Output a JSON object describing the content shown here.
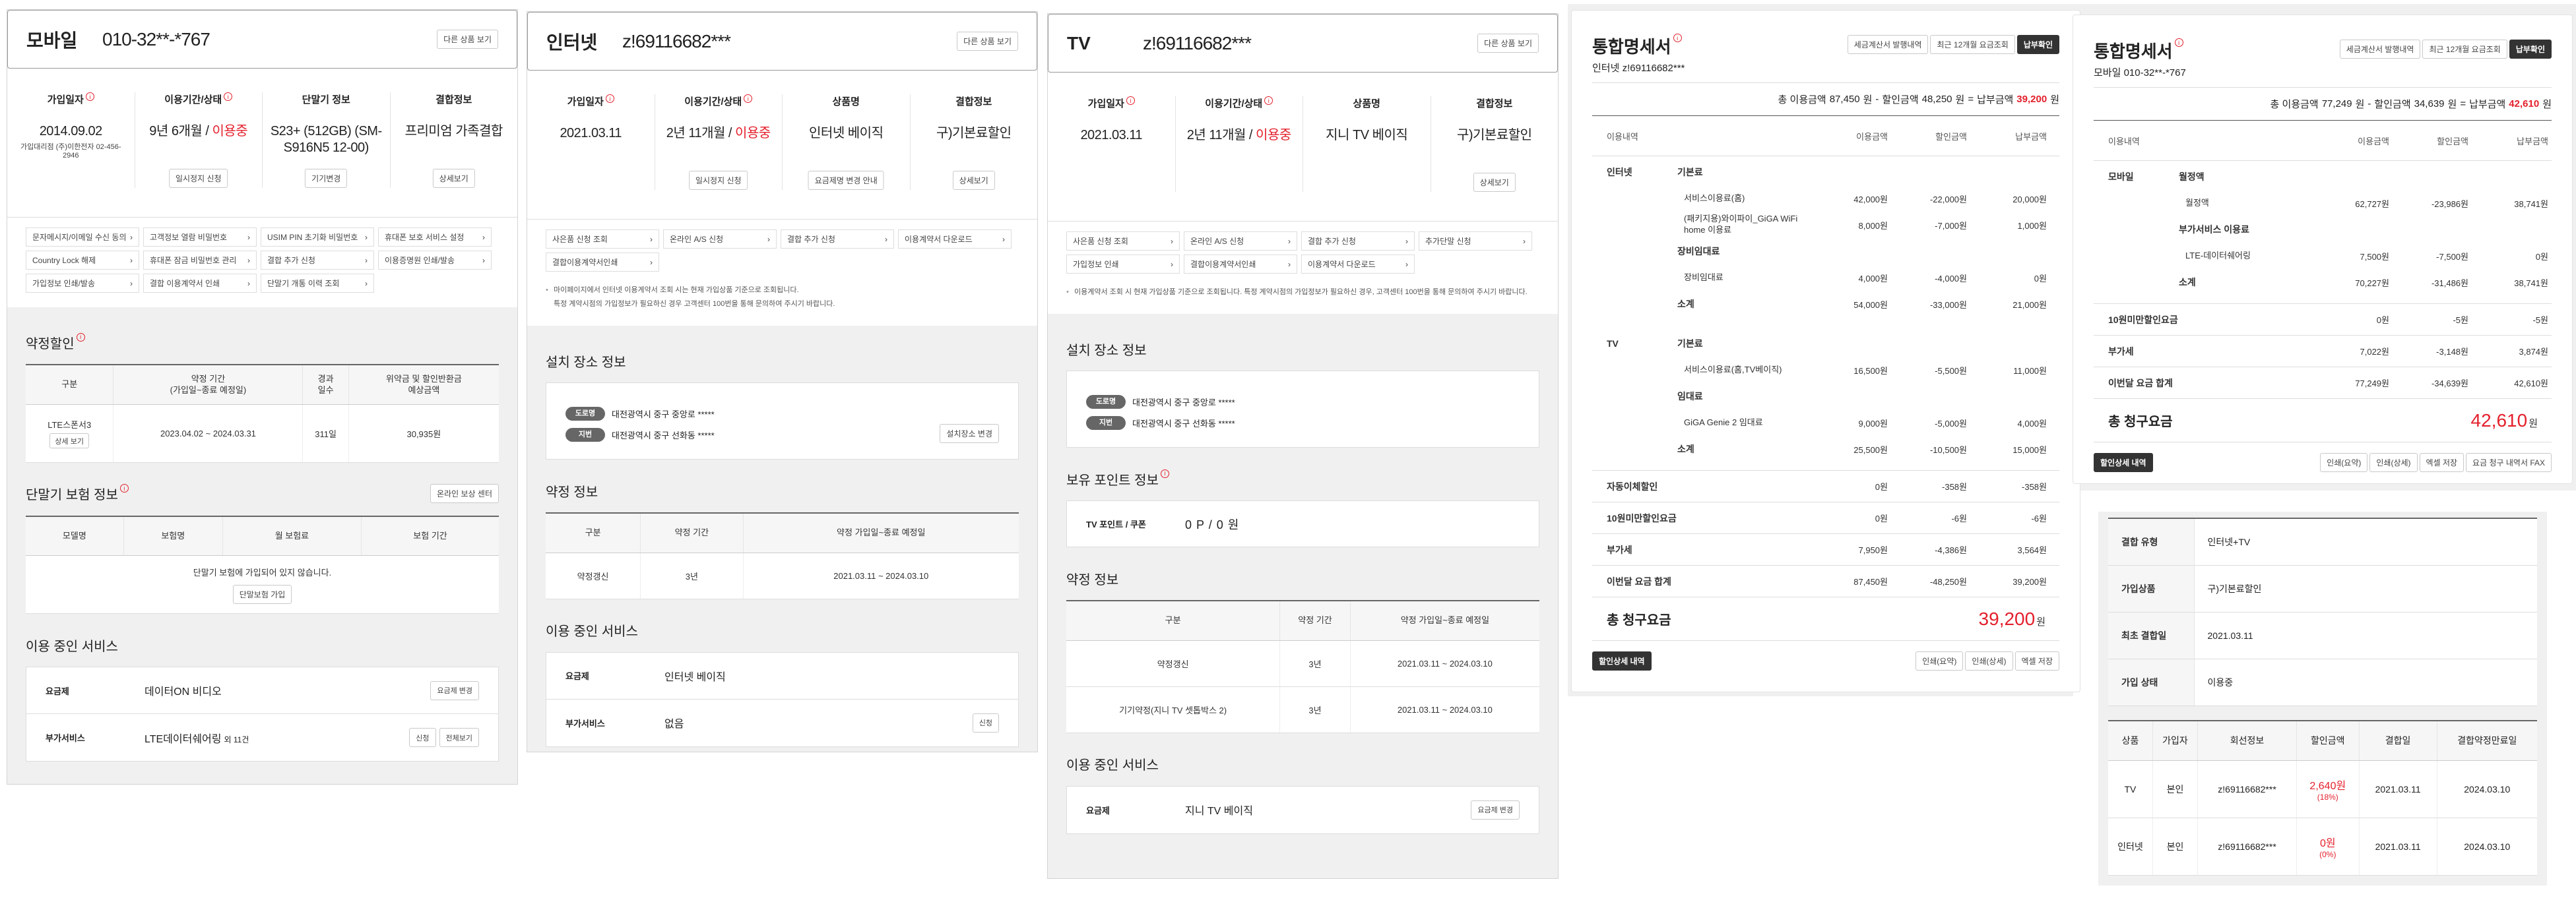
{
  "colors": {
    "accent": "#e4202c",
    "dark_button": "#333333",
    "panel_bg": "#f0f0f0"
  },
  "mobile": {
    "title": "모바일",
    "number": "010-32**-*767",
    "other_btn": "다른 상품 보기",
    "info": [
      {
        "label": "가입일자",
        "info_icon": true,
        "value": "2014.09.02",
        "sub": "가입대리점 (주)이한전자 02-456-2946"
      },
      {
        "label": "이용기간/상태",
        "info_icon": true,
        "value": "9년 6개월 / ",
        "status": "이용중",
        "button": "일시정지 신청"
      },
      {
        "label": "단말기 정보",
        "value": "S23+ (512GB) (SM-S916N5 12-00)",
        "button": "기기변경"
      },
      {
        "label": "결합정보",
        "value": "프리미엄 가족결합",
        "button": "상세보기"
      }
    ],
    "links": [
      "문자메시지/이메일 수신 동의",
      "고객정보 열람 비밀번호",
      "USIM PIN 초기화 비밀번호",
      "휴대폰 보호 서비스 설정",
      "Country Lock 해제",
      "휴대폰 잠금 비밀번호 관리",
      "결합 추가 신청",
      "이용증명원 인쇄/발송",
      "가입정보 인쇄/발송",
      "결합 이용계약서 인쇄",
      "단말기 개통 이력 조회"
    ],
    "sections": [
      {
        "type": "table",
        "title": "약정할인",
        "info_icon": true,
        "headers": [
          "구분",
          "약정 기간\n(가입일~종료 예정일)",
          "경과\n일수",
          "위약금 및 할인반환금\n예상금액"
        ],
        "rows": [
          [
            {
              "text": "LTE스폰서3",
              "button": "상세 보기"
            },
            "2023.04.02 ~ 2024.03.31",
            "311일",
            "30,935원"
          ]
        ]
      },
      {
        "type": "empty-table",
        "title": "단말기 보험 정보",
        "info_icon": true,
        "action_btn": "온라인 보상 센터",
        "headers": [
          "모델명",
          "보험명",
          "월 보험료",
          "보험 기간"
        ],
        "empty": "단말기 보험에 가입되어 있지 않습니다.",
        "join_btn": "단말보험 가입"
      },
      {
        "type": "services",
        "title": "이용 중인 서비스",
        "rows": [
          {
            "label": "요금제",
            "value": "데이터ON 비디오",
            "buttons": [
              "요금제 변경"
            ]
          },
          {
            "label": "부가서비스",
            "value": "LTE데이터쉐어링",
            "extra": "외 11건",
            "buttons": [
              "신청",
              "전체보기"
            ]
          }
        ]
      }
    ]
  },
  "internet": {
    "title": "인터넷",
    "number": "z!69116682***",
    "other_btn": "다른 상품 보기",
    "info": [
      {
        "label": "가입일자",
        "info_icon": true,
        "value": "2021.03.11"
      },
      {
        "label": "이용기간/상태",
        "info_icon": true,
        "value": "2년 11개월 / ",
        "status": "이용중",
        "button": "일시정지 신청"
      },
      {
        "label": "상품명",
        "value": "인터넷 베이직",
        "button": "요금제명 변경 안내"
      },
      {
        "label": "결합정보",
        "value": "구)기본료할인",
        "button": "상세보기"
      }
    ],
    "links": [
      "사은품 신청 조회",
      "온라인 A/S 신청",
      "결합 추가 신청",
      "이용계약서 다운로드",
      "결합이용계약서인쇄"
    ],
    "notice": [
      "마이페이지에서 인터넷 이용계약서 조회 시는 현재 가입상품 기준으로 조회됩니다.",
      "특정 계약시점의 가입정보가 필요하신 경우 고객센터 100번을 통해 문의하여 주시기 바랍니다."
    ],
    "sections": [
      {
        "type": "address",
        "title": "설치 장소 정보",
        "rows": [
          {
            "tag": "도로명",
            "text": "대전광역시 중구 중앙로 *****"
          },
          {
            "tag": "지번",
            "text": "대전광역시 중구 선화동 *****"
          }
        ],
        "button": "설치장소 변경"
      },
      {
        "type": "table",
        "title": "약정 정보",
        "headers": [
          "구분",
          "약정 기간",
          "약정 가입일~종료 예정일"
        ],
        "rows": [
          [
            "약정갱신",
            "3년",
            "2021.03.11 ~ 2024.03.10"
          ]
        ]
      },
      {
        "type": "services",
        "title": "이용 중인 서비스",
        "rows": [
          {
            "label": "요금제",
            "value": "인터넷 베이직",
            "buttons": []
          },
          {
            "label": "부가서비스",
            "value": "없음",
            "buttons": [
              "신청"
            ]
          }
        ]
      }
    ]
  },
  "tv": {
    "title": "TV",
    "number": "z!69116682***",
    "other_btn": "다른 상품 보기",
    "info": [
      {
        "label": "가입일자",
        "info_icon": true,
        "value": "2021.03.11"
      },
      {
        "label": "이용기간/상태",
        "info_icon": true,
        "value": "2년 11개월 / ",
        "status": "이용중"
      },
      {
        "label": "상품명",
        "value": "지니 TV 베이직"
      },
      {
        "label": "결합정보",
        "value": "구)기본료할인",
        "button": "상세보기"
      }
    ],
    "links": [
      "사은품 신청 조회",
      "온라인 A/S 신청",
      "결합 추가 신청",
      "추가단말 신청",
      "가입정보 인쇄",
      "결합이용계약서인쇄",
      "이용계약서 다운로드"
    ],
    "notice": [
      "이용계약서 조회 시 현재 가입상품 기준으로 조회됩니다. 특정 계약시점의 가입정보가 필요하신 경우, 고객센터 100번을 통해 문의하여 주시기 바랍니다."
    ],
    "sections": [
      {
        "type": "address",
        "title": "설치 장소 정보",
        "rows": [
          {
            "tag": "도로명",
            "text": "대전광역시 중구 중앙로 *****"
          },
          {
            "tag": "지번",
            "text": "대전광역시 중구 선화동 *****"
          }
        ]
      },
      {
        "type": "points",
        "title": "보유 포인트 정보",
        "info_icon": true,
        "label": "TV 포인트 / 쿠폰",
        "value": "0 P / 0 원"
      },
      {
        "type": "table",
        "title": "약정 정보",
        "headers": [
          "구분",
          "약정 기간",
          "약정 가입일~종료 예정일"
        ],
        "rows": [
          [
            "약정갱신",
            "3년",
            "2021.03.11 ~ 2024.03.10"
          ],
          [
            "기기약정(지니 TV 셋톱박스 2)",
            "3년",
            "2021.03.11 ~ 2024.03.10"
          ]
        ]
      },
      {
        "type": "services",
        "title": "이용 중인 서비스",
        "rows": [
          {
            "label": "요금제",
            "value": "지니 TV 베이직",
            "buttons": [
              "요금제 변경"
            ]
          }
        ]
      }
    ]
  },
  "stmt_internet": {
    "title": "통합명세서",
    "info_icon": true,
    "sub": "인터넷 z!69116682***",
    "buttons": [
      "세금계산서 발행내역",
      "최근 12개월 요금조회",
      "납부확인"
    ],
    "summary": {
      "total_label": "총 이용금액",
      "total": "87,450",
      "discount_label": "할인금액",
      "discount": "48,250",
      "pay_label": "납부금액",
      "pay": "39,200",
      "unit": "원",
      "minus": "-",
      "equals": "="
    },
    "headers": [
      "이용내역",
      "이용금액",
      "할인금액",
      "납부금액"
    ],
    "groups": [
      {
        "product": "인터넷",
        "categories": [
          {
            "name": "기본료",
            "items": [
              {
                "name": "서비스이용료(홈)",
                "use": "42,000원",
                "disc": "-22,000원",
                "pay": "20,000원"
              },
              {
                "name": "(패키지용)와이파이_GiGA WiFi home 이용료",
                "use": "8,000원",
                "disc": "-7,000원",
                "pay": "1,000원"
              }
            ]
          },
          {
            "name": "장비임대료",
            "items": [
              {
                "name": "장비임대료",
                "use": "4,000원",
                "disc": "-4,000원",
                "pay": "0원"
              }
            ]
          }
        ],
        "subtotal": {
          "label": "소계",
          "use": "54,000원",
          "disc": "-33,000원",
          "pay": "21,000원"
        }
      },
      {
        "product": "TV",
        "categories": [
          {
            "name": "기본료",
            "items": [
              {
                "name": "서비스이용료(홈,TV베이직)",
                "use": "16,500원",
                "disc": "-5,500원",
                "pay": "11,000원"
              }
            ]
          },
          {
            "name": "임대료",
            "items": [
              {
                "name": "GiGA Genie 2 임대료",
                "use": "9,000원",
                "disc": "-5,000원",
                "pay": "4,000원"
              }
            ]
          }
        ],
        "subtotal": {
          "label": "소계",
          "use": "25,500원",
          "disc": "-10,500원",
          "pay": "15,000원"
        }
      }
    ],
    "extras": [
      {
        "label": "자동이체할인",
        "use": "0원",
        "disc": "-358원",
        "pay": "-358원"
      },
      {
        "label": "10원미만할인요금",
        "use": "0원",
        "disc": "-6원",
        "pay": "-6원"
      },
      {
        "label": "부가세",
        "use": "7,950원",
        "disc": "-4,386원",
        "pay": "3,564원"
      },
      {
        "label": "이번달 요금 합계",
        "use": "87,450원",
        "disc": "-48,250원",
        "pay": "39,200원"
      }
    ],
    "total": {
      "label": "총 청구요금",
      "value": "39,200",
      "unit": "원"
    },
    "footer": {
      "discount_btn": "할인상세 내역",
      "buttons": [
        "인쇄(요약)",
        "인쇄(상세)",
        "엑셀 저장"
      ]
    }
  },
  "stmt_mobile": {
    "title": "통합명세서",
    "info_icon": true,
    "sub": "모바일 010-32**-*767",
    "buttons": [
      "세금계산서 발행내역",
      "최근 12개월 요금조회",
      "납부확인"
    ],
    "summary": {
      "total_label": "총 이용금액",
      "total": "77,249",
      "discount_label": "할인금액",
      "discount": "34,639",
      "pay_label": "납부금액",
      "pay": "42,610",
      "unit": "원",
      "minus": "-",
      "equals": "="
    },
    "headers": [
      "이용내역",
      "이용금액",
      "할인금액",
      "납부금액"
    ],
    "groups": [
      {
        "product": "모바일",
        "categories": [
          {
            "name": "월정액",
            "items": [
              {
                "name": "월정액",
                "use": "62,727원",
                "disc": "-23,986원",
                "pay": "38,741원"
              }
            ]
          },
          {
            "name": "부가서비스 이용료",
            "items": [
              {
                "name": "LTE-데이터쉐어링",
                "use": "7,500원",
                "disc": "-7,500원",
                "pay": "0원"
              }
            ]
          }
        ],
        "subtotal": {
          "label": "소계",
          "use": "70,227원",
          "disc": "-31,486원",
          "pay": "38,741원"
        }
      }
    ],
    "extras": [
      {
        "label": "10원미만할인요금",
        "use": "0원",
        "disc": "-5원",
        "pay": "-5원"
      },
      {
        "label": "부가세",
        "use": "7,022원",
        "disc": "-3,148원",
        "pay": "3,874원"
      },
      {
        "label": "이번달 요금 합계",
        "use": "77,249원",
        "disc": "-34,639원",
        "pay": "42,610원"
      }
    ],
    "total": {
      "label": "총 청구요금",
      "value": "42,610",
      "unit": "원"
    },
    "footer": {
      "discount_btn": "할인상세 내역",
      "buttons": [
        "인쇄(요약)",
        "인쇄(상세)",
        "엑셀 저장",
        "요금 청구 내역서 FAX"
      ]
    }
  },
  "combination": {
    "info": [
      {
        "label": "결합 유형",
        "value": "인터넷+TV"
      },
      {
        "label": "가입상품",
        "value": "구)기본료할인"
      },
      {
        "label": "최초 결합일",
        "value": "2021.03.11"
      },
      {
        "label": "가입 상태",
        "value": "이용중"
      }
    ],
    "headers": [
      "상품",
      "가입자",
      "회선정보",
      "할인금액",
      "결합일",
      "결합약정만료일"
    ],
    "rows": [
      {
        "product": "TV",
        "member": "본인",
        "line": "z!69116682***",
        "discount": "2,640원",
        "rate": "(18%)",
        "date": "2021.03.11",
        "end": "2024.03.10"
      },
      {
        "product": "인터넷",
        "member": "본인",
        "line": "z!69116682***",
        "discount": "0원",
        "rate": "(0%)",
        "date": "2021.03.11",
        "end": "2024.03.10"
      }
    ]
  }
}
